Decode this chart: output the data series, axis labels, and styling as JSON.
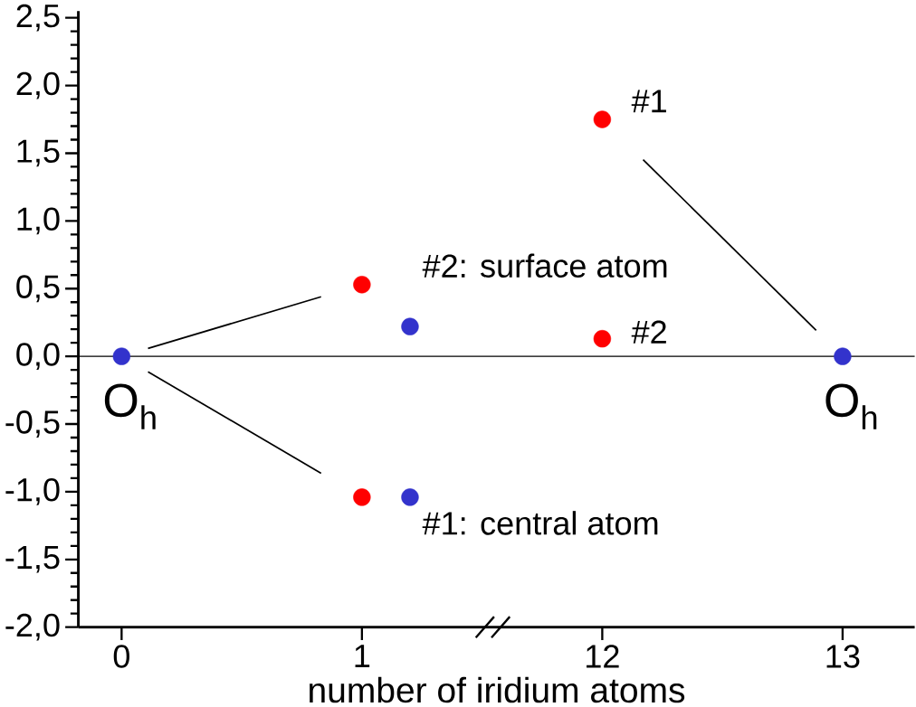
{
  "chart_data": {
    "type": "scatter",
    "xlabel": "number of iridium atoms",
    "categories": [
      "0",
      "1",
      "12",
      "13"
    ],
    "series": [
      {
        "color": "#ff0000",
        "values": [
          null,
          0.53,
          1.75,
          null
        ]
      },
      {
        "color": "#ff0000",
        "values": [
          null,
          -1.04,
          0.13,
          null
        ]
      },
      {
        "color": "#3333cc",
        "values": [
          0,
          0.22,
          null,
          0
        ]
      },
      {
        "color": "#3333cc",
        "values": [
          null,
          -1.04,
          null,
          null
        ]
      }
    ],
    "ylim": [
      -2,
      2.55
    ],
    "yticks": [
      {
        "value": -2,
        "label": "-2,0"
      },
      {
        "value": -1.5,
        "label": "-1,5"
      },
      {
        "value": -1,
        "label": "-1,0"
      },
      {
        "value": -0.5,
        "label": "-0,5"
      },
      {
        "value": 0,
        "label": "0,0"
      },
      {
        "value": 0.5,
        "label": "0,5"
      },
      {
        "value": 1,
        "label": "1,0"
      },
      {
        "value": 1.5,
        "label": "1,5"
      },
      {
        "value": 2,
        "label": "2,0"
      },
      {
        "value": 2.5,
        "label": "2,5"
      }
    ],
    "ref_lines": [
      {
        "axis": "y",
        "value": 0,
        "color": "#000000"
      }
    ],
    "marker": "circle",
    "grid": false,
    "annotations": [
      {
        "text": "#2: surface atom",
        "x": "1",
        "y": 0.53
      },
      {
        "text": "#1: central atom",
        "x": "1",
        "y": -1.04
      },
      {
        "text": "#1",
        "x": "12",
        "y": 1.75
      },
      {
        "text": "#2",
        "x": "12",
        "y": 0.13
      },
      {
        "text": "O$_{h}$",
        "x": "0",
        "y": 0
      },
      {
        "text": "O$_{h}$",
        "x": "13",
        "y": 0
      }
    ]
  }
}
